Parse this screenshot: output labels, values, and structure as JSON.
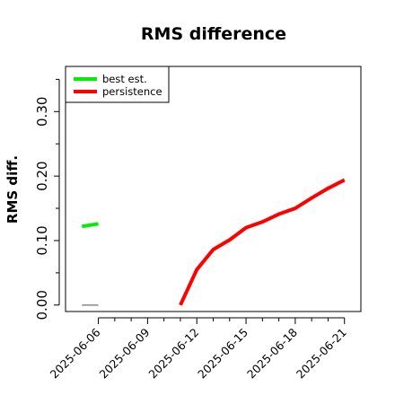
{
  "chart_data": {
    "type": "line",
    "title": "RMS difference",
    "xlabel": "",
    "ylabel": "RMS diff.",
    "x_ticks": [
      "2025-06-06",
      "2025-06-09",
      "2025-06-12",
      "2025-06-15",
      "2025-06-18",
      "2025-06-21"
    ],
    "x_minor_ticks": [
      "2025-06-07",
      "2025-06-08",
      "2025-06-10",
      "2025-06-11",
      "2025-06-13",
      "2025-06-14",
      "2025-06-16",
      "2025-06-17",
      "2025-06-19",
      "2025-06-20"
    ],
    "xlim": [
      "2025-06-04",
      "2025-06-22"
    ],
    "y_ticks": [
      0.0,
      0.1,
      0.2,
      0.3
    ],
    "y_minor_ticks": [
      0.05,
      0.15,
      0.25,
      0.35
    ],
    "ylim": [
      -0.01,
      0.37
    ],
    "grid": false,
    "legend_position": "top-left",
    "series": [
      {
        "name": "best est.",
        "color": "#00ee00",
        "points": [
          [
            "2025-06-05",
            0.122
          ],
          [
            "2025-06-06",
            0.126
          ]
        ]
      },
      {
        "name": "persistence",
        "color": "#ff0000",
        "points": [
          [
            "2025-06-11",
            0.0
          ],
          [
            "2025-06-12",
            0.055
          ],
          [
            "2025-06-13",
            0.086
          ],
          [
            "2025-06-14",
            0.101
          ],
          [
            "2025-06-15",
            0.12
          ],
          [
            "2025-06-16",
            0.129
          ],
          [
            "2025-06-17",
            0.141
          ],
          [
            "2025-06-18",
            0.15
          ],
          [
            "2025-06-19",
            0.166
          ],
          [
            "2025-06-20",
            0.181
          ],
          [
            "2025-06-21",
            0.194
          ]
        ]
      }
    ],
    "reference_segment": {
      "color": "#888888",
      "points": [
        [
          "2025-06-05",
          0.0
        ],
        [
          "2025-06-06",
          0.0
        ]
      ]
    }
  }
}
